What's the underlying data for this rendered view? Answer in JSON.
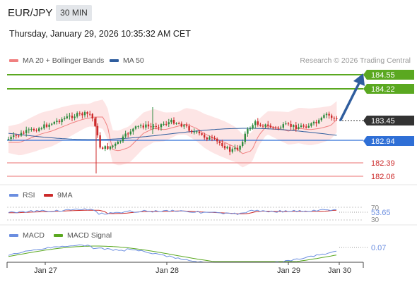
{
  "header": {
    "symbol": "EUR/JPY",
    "timeframe": "30 MIN",
    "datetime": "Thursday, January 29, 2026 10:35:32 AM CET"
  },
  "legend": {
    "ma20_label": "MA 20 + Bollinger Bands",
    "ma50_label": "MA 50",
    "credit": "Research © 2026 Trading Central",
    "rsi_label": "RSI",
    "rsi_ma_label": "9MA",
    "macd_label": "MACD",
    "macd_signal_label": "MACD Signal"
  },
  "colors": {
    "ma20": "#f08080",
    "ma50": "#2f5d9e",
    "bollinger_fill": "#fde0e0",
    "resistance": "#5aa820",
    "support": "#e05050",
    "pivot": "#2f6fd6",
    "last_price": "#333333",
    "candle_up": "#2e8b3e",
    "candle_down": "#cc2a2a",
    "macd": "#6b8ee0",
    "macd_signal": "#5aa820",
    "forecast_arrow": "#2f5d9e"
  },
  "levels": {
    "resistance_2": "184.55",
    "resistance_1": "184.22",
    "last_price": "183.45",
    "pivot": "182.94",
    "support_1": "182.39",
    "support_2": "182.06"
  },
  "rsi": {
    "value": "53.65",
    "level_upper": "70",
    "level_lower": "30"
  },
  "macd": {
    "value": "0.07"
  },
  "x_axis": {
    "labels": [
      "Jan 27",
      "Jan 28",
      "Jan 29",
      "Jan 30"
    ]
  }
}
